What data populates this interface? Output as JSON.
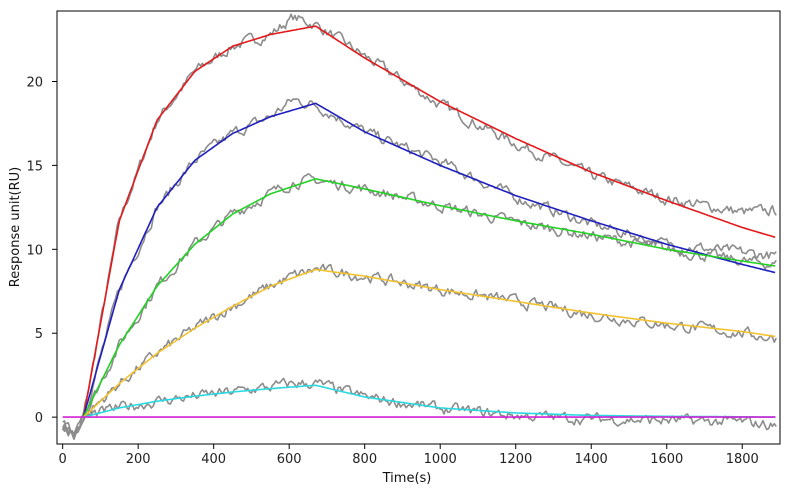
{
  "chart_data": {
    "type": "line",
    "title": "",
    "xlabel": "Time(s)",
    "ylabel": "Response unit(RU)",
    "xlim": [
      -15,
      1900
    ],
    "ylim": [
      -1.6,
      24.2
    ],
    "xticks": [
      0,
      200,
      400,
      600,
      800,
      1000,
      1200,
      1400,
      1600,
      1800
    ],
    "yticks": [
      0,
      5,
      10,
      15,
      20
    ],
    "grid": false,
    "legend": "none",
    "injection_start_s": 55,
    "injection_end_s": 670,
    "series": [
      {
        "color": "#e31a1c",
        "role": "fit",
        "x": [
          55,
          150,
          250,
          350,
          450,
          550,
          670,
          800,
          1000,
          1200,
          1400,
          1600,
          1800,
          1890
        ],
        "y": [
          0,
          11.7,
          17.7,
          20.6,
          22.1,
          22.8,
          23.3,
          21.4,
          18.8,
          16.6,
          14.6,
          12.9,
          11.3,
          10.7
        ]
      },
      {
        "color": "#1f1fbf",
        "role": "fit",
        "x": [
          55,
          150,
          250,
          350,
          450,
          550,
          670,
          800,
          1000,
          1200,
          1400,
          1600,
          1800,
          1890
        ],
        "y": [
          0,
          7.6,
          12.5,
          15.3,
          16.9,
          17.9,
          18.7,
          17.0,
          15.0,
          13.2,
          11.7,
          10.3,
          9.1,
          8.6
        ]
      },
      {
        "color": "#22d222",
        "role": "fit",
        "x": [
          55,
          150,
          250,
          350,
          450,
          550,
          670,
          800,
          1000,
          1200,
          1400,
          1600,
          1800,
          1890
        ],
        "y": [
          0,
          4.3,
          7.8,
          10.3,
          12.1,
          13.3,
          14.2,
          13.6,
          12.6,
          11.7,
          10.9,
          10.0,
          9.3,
          9.0
        ]
      },
      {
        "color": "#f2c12e",
        "role": "fit",
        "x": [
          55,
          150,
          250,
          350,
          450,
          550,
          670,
          800,
          1000,
          1200,
          1400,
          1600,
          1800,
          1890
        ],
        "y": [
          0,
          2.0,
          3.8,
          5.3,
          6.6,
          7.8,
          8.8,
          8.4,
          7.6,
          6.9,
          6.2,
          5.6,
          5.1,
          4.8
        ]
      },
      {
        "color": "#29d8e0",
        "role": "fit",
        "x": [
          55,
          150,
          250,
          350,
          450,
          550,
          670,
          800,
          1000,
          1200,
          1400,
          1600,
          1800,
          1890
        ],
        "y": [
          0,
          0.55,
          0.95,
          1.25,
          1.5,
          1.7,
          1.9,
          1.2,
          0.55,
          0.25,
          0.1,
          0.05,
          0.02,
          0.0
        ]
      },
      {
        "color": "#d21fd2",
        "role": "fit",
        "x": [
          0,
          1890
        ],
        "y": [
          0,
          0
        ]
      },
      {
        "color": "#8c8c8c",
        "role": "measured",
        "x": [
          0,
          30,
          55,
          150,
          250,
          350,
          450,
          550,
          610,
          670,
          800,
          1000,
          1200,
          1400,
          1600,
          1800,
          1890
        ],
        "y": [
          -0.5,
          -1.0,
          0,
          11.7,
          17.7,
          20.6,
          22.1,
          22.8,
          23.8,
          23.4,
          21.5,
          18.6,
          16.3,
          14.4,
          13.0,
          12.2,
          12.3
        ]
      },
      {
        "color": "#8c8c8c",
        "role": "measured",
        "x": [
          0,
          30,
          55,
          150,
          250,
          350,
          450,
          550,
          610,
          670,
          800,
          1000,
          1200,
          1400,
          1600,
          1800,
          1890
        ],
        "y": [
          -0.5,
          -1.0,
          0,
          7.6,
          12.5,
          15.3,
          16.9,
          17.9,
          18.9,
          18.6,
          17.0,
          15.2,
          13.1,
          11.5,
          10.3,
          9.8,
          9.6
        ]
      },
      {
        "color": "#8c8c8c",
        "role": "measured",
        "x": [
          0,
          30,
          55,
          150,
          250,
          350,
          450,
          550,
          610,
          670,
          800,
          1000,
          1200,
          1400,
          1600,
          1800,
          1890
        ],
        "y": [
          -0.5,
          -1.0,
          0,
          4.3,
          7.8,
          10.3,
          12.1,
          13.3,
          14.0,
          14.1,
          13.6,
          12.6,
          11.6,
          10.8,
          10.0,
          9.3,
          9.1
        ]
      },
      {
        "color": "#8c8c8c",
        "role": "measured",
        "x": [
          0,
          30,
          55,
          150,
          250,
          350,
          450,
          550,
          610,
          670,
          800,
          1000,
          1200,
          1400,
          1600,
          1800,
          1890
        ],
        "y": [
          -0.5,
          -1.0,
          0,
          2.0,
          3.8,
          5.3,
          6.6,
          7.8,
          8.4,
          8.8,
          8.4,
          7.6,
          6.9,
          6.1,
          5.5,
          5.0,
          4.7
        ]
      },
      {
        "color": "#8c8c8c",
        "role": "measured",
        "x": [
          0,
          30,
          55,
          150,
          250,
          350,
          450,
          550,
          610,
          670,
          800,
          1000,
          1200,
          1400,
          1600,
          1800,
          1890
        ],
        "y": [
          -0.5,
          -1.0,
          0,
          0.55,
          0.95,
          1.25,
          1.5,
          1.8,
          2.0,
          2.0,
          1.2,
          0.5,
          0.1,
          -0.1,
          -0.2,
          -0.3,
          -0.5
        ]
      }
    ]
  }
}
